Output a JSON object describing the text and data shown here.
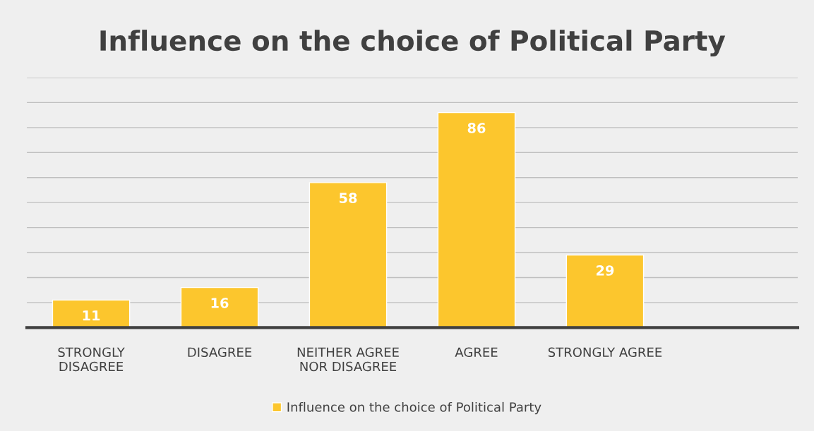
{
  "chart_data": {
    "type": "bar",
    "title": "Influence on the choice of Political Party",
    "categories": [
      "STRONGLY\nDISAGREE",
      "DISAGREE",
      "NEITHER AGREE\nNOR DISAGREE",
      "AGREE",
      "STRONGLY AGREE",
      null
    ],
    "series": [
      {
        "name": "Influence on the choice of Political Party",
        "color": "#fcc62d",
        "values": [
          11,
          16,
          58,
          86,
          29,
          null
        ]
      }
    ],
    "ylim": [
      0,
      100
    ],
    "yticks": [
      {
        "value": 0,
        "label": null
      },
      {
        "value": 10,
        "label": null
      },
      {
        "value": 20,
        "label": null
      },
      {
        "value": 30,
        "label": null
      },
      {
        "value": 40,
        "label": null
      },
      {
        "value": 50,
        "label": null
      },
      {
        "value": 60,
        "label": null
      },
      {
        "value": 70,
        "label": null
      },
      {
        "value": 80,
        "label": null
      },
      {
        "value": 90,
        "label": null
      },
      {
        "value": 100,
        "label": null
      }
    ],
    "tick_labels": "x",
    "grid": "y",
    "legend": "bottom",
    "data_labels": true
  }
}
